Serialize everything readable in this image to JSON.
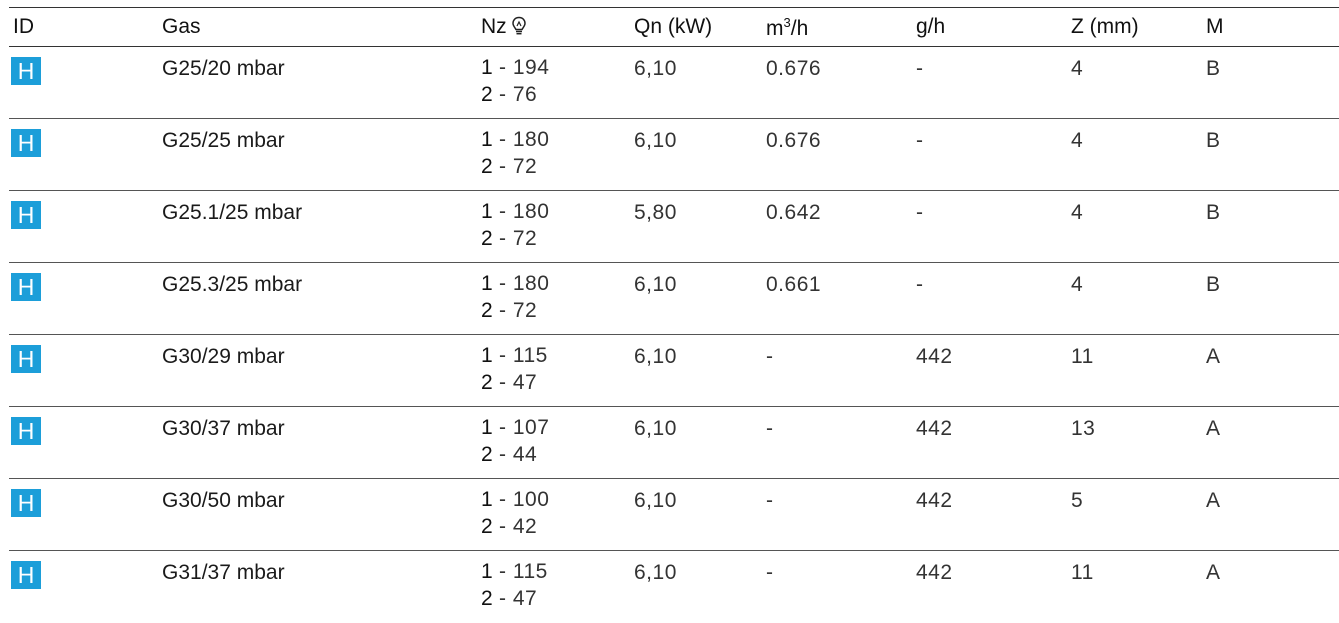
{
  "header": {
    "id": "ID",
    "gas": "Gas",
    "nz": "Nz",
    "nz_icon": "nozzle-bulb-icon",
    "qn": "Qn (kW)",
    "m3h_base": "m",
    "m3h_exp": "3",
    "m3h_unit": "/h",
    "gh": "g/h",
    "z": "Z (mm)",
    "m": "M"
  },
  "badge": {
    "color": "#1c9ed9"
  },
  "rows": [
    {
      "id": "H",
      "gas": "G25/20 mbar",
      "nz1_idx": "1",
      "nz1_val": " - 194",
      "nz2_idx": "2",
      "nz2_val": " - 76",
      "qn": "6,10",
      "m3h": "0.676",
      "gh": "-",
      "z": "4",
      "m": "B"
    },
    {
      "id": "H",
      "gas": "G25/25 mbar",
      "nz1_idx": "1",
      "nz1_val": " - 180",
      "nz2_idx": "2",
      "nz2_val": " - 72",
      "qn": "6,10",
      "m3h": "0.676",
      "gh": "-",
      "z": "4",
      "m": "B"
    },
    {
      "id": "H",
      "gas": "G25.1/25 mbar",
      "nz1_idx": "1",
      "nz1_val": " - 180",
      "nz2_idx": "2",
      "nz2_val": " - 72",
      "qn": "5,80",
      "m3h": "0.642",
      "gh": "-",
      "z": "4",
      "m": "B"
    },
    {
      "id": "H",
      "gas": "G25.3/25 mbar",
      "nz1_idx": "1",
      "nz1_val": " - 180",
      "nz2_idx": "2",
      "nz2_val": " - 72",
      "qn": "6,10",
      "m3h": "0.661",
      "gh": "-",
      "z": "4",
      "m": "B"
    },
    {
      "id": "H",
      "gas": "G30/29 mbar",
      "nz1_idx": "1",
      "nz1_val": " - 115",
      "nz2_idx": "2",
      "nz2_val": " - 47",
      "qn": "6,10",
      "m3h": "-",
      "gh": "442",
      "z": "11",
      "m": "A"
    },
    {
      "id": "H",
      "gas": "G30/37 mbar",
      "nz1_idx": "1",
      "nz1_val": " - 107",
      "nz2_idx": "2",
      "nz2_val": " - 44",
      "qn": "6,10",
      "m3h": "-",
      "gh": "442",
      "z": "13",
      "m": "A"
    },
    {
      "id": "H",
      "gas": "G30/50 mbar",
      "nz1_idx": "1",
      "nz1_val": " - 100",
      "nz2_idx": "2",
      "nz2_val": " - 42",
      "qn": "6,10",
      "m3h": "-",
      "gh": "442",
      "z": "5",
      "m": "A"
    },
    {
      "id": "H",
      "gas": "G31/37 mbar",
      "nz1_idx": "1",
      "nz1_val": " - 115",
      "nz2_idx": "2",
      "nz2_val": " - 47",
      "qn": "6,10",
      "m3h": "-",
      "gh": "442",
      "z": "11",
      "m": "A"
    }
  ]
}
